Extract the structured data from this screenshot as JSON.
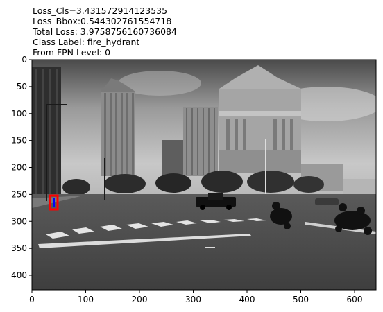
{
  "annotations": {
    "loss_cls": "Loss_Cls=3.431572914123535",
    "loss_bbox": "Loss_Bbox:0.544302761554718",
    "total_loss": "Total Loss: 3.9758756160736084",
    "class_label": "Class Label: fire_hydrant",
    "fpn_level": "From FPN Level: 0"
  },
  "axes": {
    "x_ticks": [
      "0",
      "100",
      "200",
      "300",
      "400",
      "500",
      "600"
    ],
    "y_ticks": [
      "0",
      "50",
      "100",
      "150",
      "200",
      "250",
      "300",
      "350",
      "400"
    ]
  },
  "image": {
    "description_icon": "grayscale-street-photo",
    "bbox_colors": {
      "outer": "#ff0000",
      "inner": "#0000ff"
    }
  }
}
